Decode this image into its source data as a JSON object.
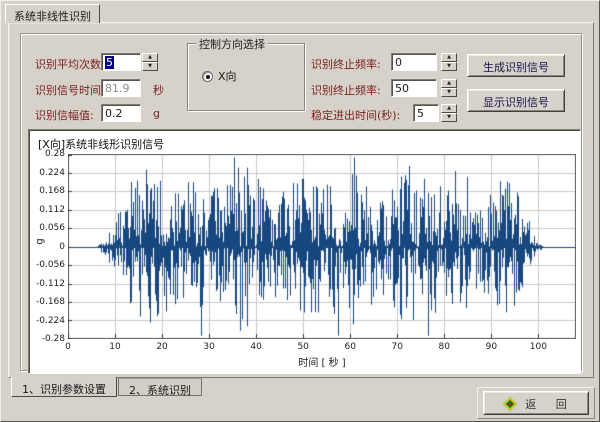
{
  "window": {
    "top_tab": "系统非线性识别"
  },
  "form": {
    "avg_label": "识别平均次数:",
    "avg_value": "5",
    "time_label": "识别信号时间:",
    "time_value": "81.9",
    "time_unit": "秒",
    "amp_label": "识别信幅值:",
    "amp_value": "0.2",
    "amp_unit": "g",
    "direction_group": {
      "title": "控制方向选择",
      "radio_label": "X向",
      "selected": true
    },
    "freq1_label": "识别终止频率:",
    "freq1_value": "0",
    "freq2_label": "识别终止频率:",
    "freq2_value": "50",
    "settle_label": "稳定进出时间(秒):",
    "settle_value": "5",
    "generate_button": "生成识别信号",
    "display_button": "显示识别信号"
  },
  "chart_data": {
    "type": "line",
    "title": "[X向]系统非线形识别信号",
    "xlabel": "时间 [ 秒 ]",
    "ylabel": "g",
    "xlim": [
      0,
      108
    ],
    "ylim": [
      -0.28,
      0.28
    ],
    "x_ticks": [
      0,
      10,
      20,
      30,
      40,
      50,
      60,
      70,
      80,
      90,
      100
    ],
    "y_ticks": [
      0.28,
      0.224,
      0.168,
      0.112,
      0.056,
      0,
      -0.056,
      -0.112,
      -0.168,
      -0.224,
      -0.28
    ],
    "grid": true,
    "legend": "none",
    "line_color": "#17477f",
    "grid_color": "#c9c9c9",
    "signal": {
      "kind": "band-limited random noise burst (identification excitation)",
      "active_start_s": 6,
      "ramp_end_s": 14,
      "taper_start_s": 92,
      "active_end_s": 101,
      "peak_g": 0.27,
      "typical_g": 0.12,
      "seed": 1337
    }
  },
  "bottom": {
    "tab1": "1、识别参数设置",
    "tab2": "2、系统识别",
    "return_label": "返 回"
  },
  "colors": {
    "background": "#d6d2ca",
    "label_text": "#7b1e1e",
    "button_text": "#14144a",
    "selection_bg": "#000080",
    "signal": "#17477f",
    "diamond_green": "#1f7a1f",
    "diamond_border": "#c2cf2a"
  }
}
